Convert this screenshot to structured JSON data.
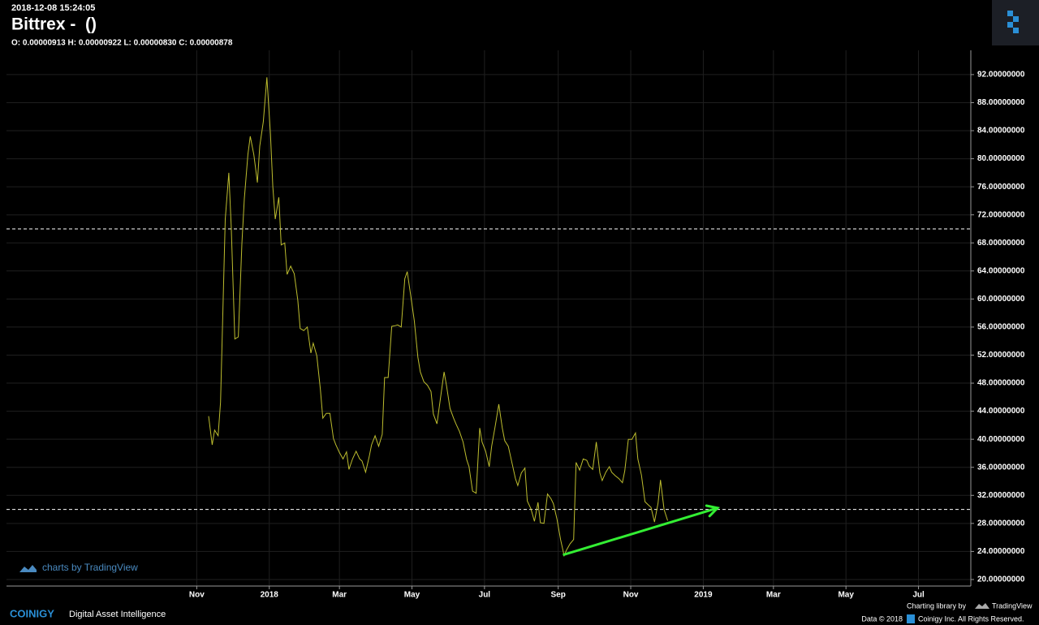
{
  "header": {
    "timestamp": "2018-12-08 15:24:05",
    "title": "Bittrex -  ()",
    "ohlc": "O: 0.00000913 H: 0.00000922 L: 0.00000830 C: 0.00000878"
  },
  "footer": {
    "watermark": "charts by TradingView",
    "brand": "COINIGY",
    "tagline": "Digital Asset Intelligence",
    "library": "Charting library by",
    "library_name": "TradingView",
    "data_credit": "Data © 2018",
    "rights": "Coinigy Inc. All Rights Reserved."
  },
  "chart_data": {
    "type": "line",
    "xlim": [
      -160,
      651
    ],
    "xticks": [
      {
        "value": 0,
        "label": "Nov"
      },
      {
        "value": 61,
        "label": "2018"
      },
      {
        "value": 120,
        "label": "Mar"
      },
      {
        "value": 181,
        "label": "May"
      },
      {
        "value": 242,
        "label": "Jul"
      },
      {
        "value": 304,
        "label": "Sep"
      },
      {
        "value": 365,
        "label": "Nov"
      },
      {
        "value": 426,
        "label": "2019"
      },
      {
        "value": 485,
        "label": "Mar"
      },
      {
        "value": 546,
        "label": "May"
      },
      {
        "value": 607,
        "label": "Jul"
      }
    ],
    "ylim": [
      19.07,
      95.46
    ],
    "yticks": [
      {
        "value": 20,
        "label": "20.00000000"
      },
      {
        "value": 24,
        "label": "24.00000000"
      },
      {
        "value": 28,
        "label": "28.00000000"
      },
      {
        "value": 32,
        "label": "32.00000000"
      },
      {
        "value": 36,
        "label": "36.00000000"
      },
      {
        "value": 40,
        "label": "40.00000000"
      },
      {
        "value": 44,
        "label": "44.00000000"
      },
      {
        "value": 48,
        "label": "48.00000000"
      },
      {
        "value": 52,
        "label": "52.00000000"
      },
      {
        "value": 56,
        "label": "56.00000000"
      },
      {
        "value": 60,
        "label": "60.00000000"
      },
      {
        "value": 64,
        "label": "64.00000000"
      },
      {
        "value": 68,
        "label": "68.00000000"
      },
      {
        "value": 72,
        "label": "72.00000000"
      },
      {
        "value": 76,
        "label": "76.00000000"
      },
      {
        "value": 80,
        "label": "80.00000000"
      },
      {
        "value": 84,
        "label": "84.00000000"
      },
      {
        "value": 88,
        "label": "88.00000000"
      },
      {
        "value": 92,
        "label": "92.00000000"
      }
    ],
    "grid": true,
    "series": [
      {
        "color": "#bdbd2e",
        "x": [
          10,
          13,
          15,
          18,
          20,
          24,
          27,
          29,
          32,
          35,
          38,
          40,
          43,
          45,
          48,
          51,
          53,
          56,
          59,
          62,
          64,
          66,
          69,
          71,
          74,
          76,
          79,
          82,
          85,
          87,
          90,
          93,
          96,
          98,
          101,
          104,
          106,
          109,
          112,
          115,
          117,
          120,
          123,
          126,
          128,
          131,
          134,
          137,
          139,
          142,
          145,
          147,
          150,
          153,
          156,
          158,
          161,
          164,
          167,
          169,
          172,
          175,
          177,
          180,
          183,
          186,
          188,
          191,
          194,
          197,
          199,
          202,
          205,
          208,
          210,
          213,
          216,
          218,
          221,
          224,
          227,
          229,
          232,
          235,
          238,
          240,
          243,
          246,
          248,
          251,
          254,
          257,
          259,
          262,
          265,
          268,
          270,
          273,
          276,
          278,
          281,
          284,
          287,
          289,
          292,
          295,
          298,
          300,
          303,
          306,
          309,
          311,
          314,
          317,
          319,
          322,
          325,
          328,
          330,
          333,
          336,
          339,
          341,
          344,
          347,
          349,
          352,
          355,
          358,
          360,
          363,
          366,
          369,
          371,
          374,
          377,
          380,
          382,
          385,
          388,
          390,
          393,
          396
        ],
        "values": [
          43.3,
          39.2,
          41.3,
          40.5,
          45.3,
          71.4,
          78.0,
          70.2,
          54.3,
          54.6,
          67.9,
          74.3,
          80.6,
          83.2,
          80.6,
          76.6,
          81.8,
          85.3,
          91.6,
          83.5,
          76.0,
          71.4,
          74.5,
          67.7,
          68.0,
          63.5,
          64.7,
          63.6,
          59.8,
          55.8,
          55.5,
          56.0,
          52.3,
          53.7,
          51.9,
          47.1,
          43.0,
          43.7,
          43.7,
          40.1,
          39.2,
          38.1,
          37.2,
          38.2,
          35.7,
          37.2,
          38.3,
          37.2,
          36.9,
          35.3,
          37.5,
          39.2,
          40.5,
          39.0,
          40.7,
          48.8,
          48.8,
          56.1,
          56.2,
          56.3,
          56.0,
          62.9,
          63.9,
          60.4,
          56.9,
          51.7,
          49.6,
          48.2,
          47.7,
          46.8,
          43.6,
          42.2,
          45.9,
          49.6,
          47.7,
          44.4,
          43.0,
          42.2,
          41.1,
          39.6,
          37.1,
          36.1,
          32.6,
          32.3,
          41.6,
          39.6,
          38.3,
          36.1,
          39.0,
          41.9,
          45.0,
          41.6,
          39.8,
          39.0,
          36.7,
          34.4,
          33.4,
          35.2,
          35.9,
          31.2,
          30.1,
          28.3,
          31.0,
          28.1,
          28.0,
          32.2,
          31.5,
          30.8,
          28.6,
          25.7,
          23.4,
          24.2,
          25.1,
          25.7,
          36.7,
          35.6,
          37.2,
          37.0,
          36.2,
          35.7,
          39.6,
          35.2,
          34.1,
          35.3,
          36.1,
          35.3,
          34.8,
          34.4,
          33.8,
          35.5,
          40.0,
          40.0,
          40.9,
          37.2,
          34.9,
          31.1,
          30.6,
          30.3,
          28.2,
          30.9,
          34.2,
          30.0,
          28.4
        ]
      }
    ],
    "hlines": [
      70,
      30
    ],
    "arrow": {
      "color": "#33ee33",
      "x": [
        308,
        438
      ],
      "y": [
        23.5,
        30.2
      ]
    }
  }
}
